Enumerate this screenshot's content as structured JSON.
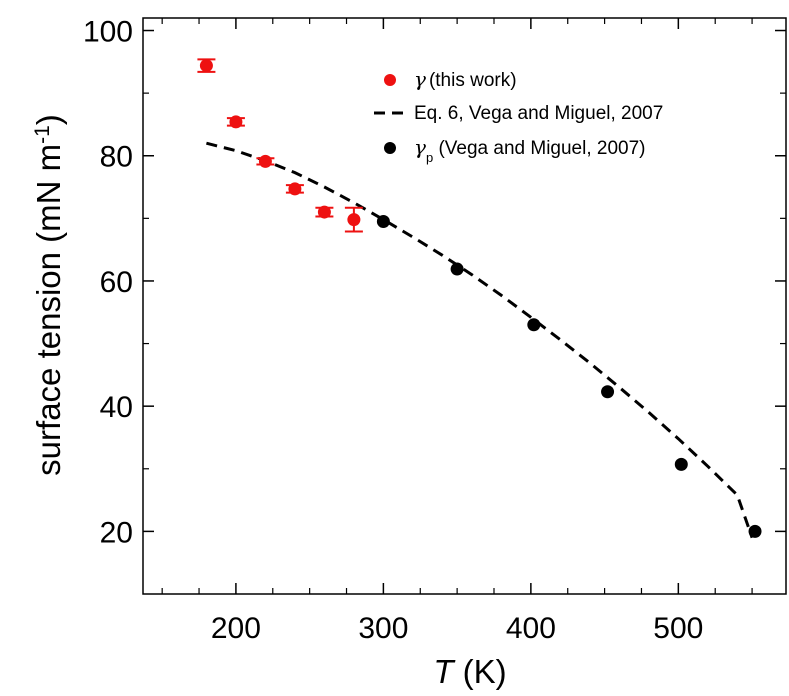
{
  "chart_data": {
    "type": "scatter",
    "xlabel": {
      "italic": "T",
      "rest": " (K)"
    },
    "ylabel": {
      "main": "surface tension (mN m",
      "sup": "-1",
      "close": ")"
    },
    "xlim": [
      137,
      573
    ],
    "ylim": [
      10,
      102
    ],
    "xticks": [
      200,
      300,
      400,
      500
    ],
    "yticks": [
      20,
      40,
      60,
      80,
      100
    ],
    "xminor": [
      150,
      175,
      225,
      250,
      275,
      325,
      350,
      375,
      425,
      450,
      475,
      525,
      550
    ],
    "yminor": [
      30,
      50,
      70,
      90
    ],
    "grid": false,
    "legend_position": "top-right",
    "series": [
      {
        "name": "γ (this work)",
        "legend_symbol": "γ",
        "legend_text": "(this work)",
        "kind": "points_with_errorbars",
        "color": "#ee1111",
        "x": [
          180,
          200,
          220,
          240,
          260,
          280
        ],
        "y": [
          94.4,
          85.4,
          79.1,
          74.7,
          71.0,
          69.8
        ],
        "yerr": [
          1.0,
          0.6,
          0.5,
          0.6,
          0.7,
          1.9
        ]
      },
      {
        "name": "Eq. 6, Vega and Miguel, 2007",
        "legend_text": "Eq. 6, Vega and Miguel, 2007",
        "kind": "dashed_line",
        "color": "#000000",
        "x": [
          180,
          200,
          220,
          240,
          260,
          280,
          300,
          320,
          340,
          360,
          380,
          400,
          420,
          440,
          460,
          480,
          500,
          520,
          540,
          550
        ],
        "y": [
          82.0,
          80.8,
          79.2,
          77.3,
          75.0,
          72.5,
          69.8,
          67.0,
          64.1,
          61.0,
          57.7,
          54.2,
          50.6,
          46.9,
          43.0,
          39.0,
          34.8,
          30.4,
          25.8,
          19.0
        ]
      },
      {
        "name": "γp (Vega and Miguel, 2007)",
        "legend_symbol": "γ",
        "legend_sub": "p",
        "legend_text": " (Vega and Miguel, 2007)",
        "kind": "points",
        "color": "#000000",
        "x": [
          300,
          350,
          402,
          452,
          502,
          552
        ],
        "y": [
          69.5,
          61.9,
          53.0,
          42.3,
          30.7,
          20.0
        ]
      }
    ]
  }
}
